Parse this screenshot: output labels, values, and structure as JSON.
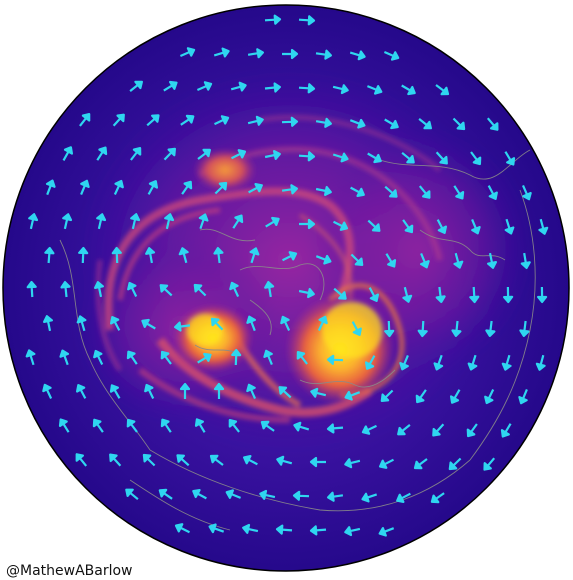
{
  "credit": "@MathewABarlow",
  "colors": {
    "field_low": "#2a0a8c",
    "field_mid": "#8e1aa0",
    "field_high": "#f07a3a",
    "field_peak": "#ffe61e",
    "arrows": "#2fd6f0",
    "coastlines": "#8a8a8a",
    "disc_border": "#000000"
  },
  "icons": {
    "wind_vector": "arrow-icon",
    "coastline": "coastline-path"
  }
}
